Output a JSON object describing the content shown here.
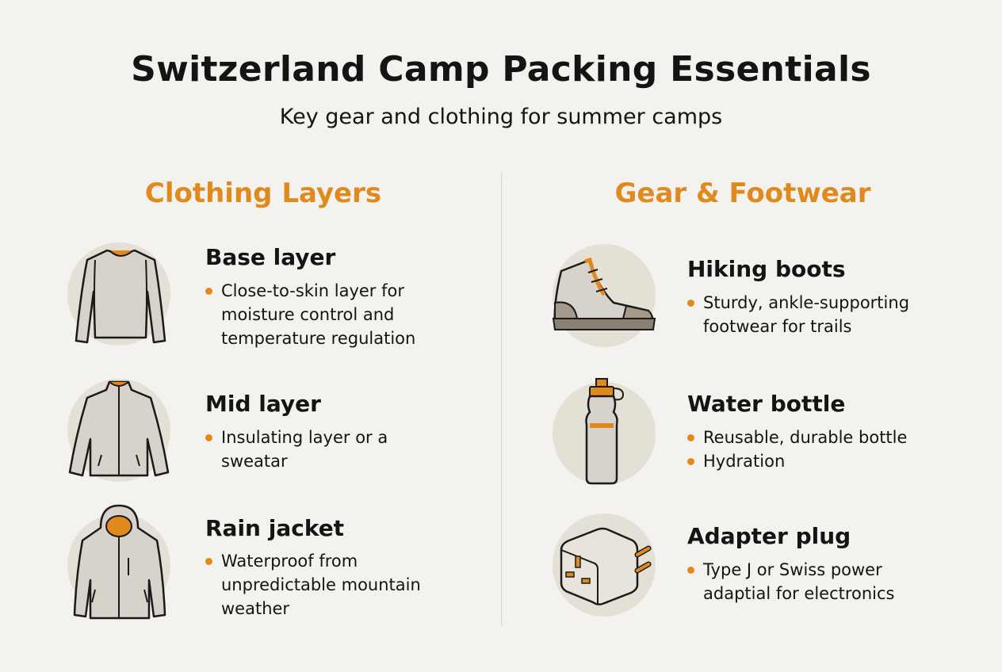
{
  "header": {
    "title": "Switzerland Camp Packing Essentials",
    "subtitle": "Key gear and clothing for summer camps"
  },
  "colors": {
    "accent": "#e08a1e",
    "background": "#f3f2ee",
    "icon_circle": "#e4e0d6"
  },
  "left_section": {
    "heading": "Clothing Layers",
    "items": [
      {
        "icon": "base-layer-shirt-icon",
        "title": "Base layer",
        "bullets": [
          "Close-to-skin layer for\nmoisture control and\ntemperature regulation"
        ]
      },
      {
        "icon": "fleece-jacket-icon",
        "title": "Mid layer",
        "bullets": [
          "Insulating layer or a\nsweatar"
        ]
      },
      {
        "icon": "rain-jacket-icon",
        "title": "Rain jacket",
        "bullets": [
          "Waterproof from\nunpredictable mountain\nweather"
        ]
      }
    ]
  },
  "right_section": {
    "heading": "Gear & Footwear",
    "items": [
      {
        "icon": "hiking-boot-icon",
        "title": "Hiking boots",
        "bullets": [
          "Sturdy, ankle-supporting\nfootwear for trails"
        ]
      },
      {
        "icon": "water-bottle-icon",
        "title": "Water bottle",
        "bullets": [
          "Reusable, durable bottle",
          "Hydration"
        ]
      },
      {
        "icon": "adapter-plug-icon",
        "title": "Adapter plug",
        "bullets": [
          "Type J or Swiss power\nadaptial for electronics"
        ]
      }
    ]
  }
}
